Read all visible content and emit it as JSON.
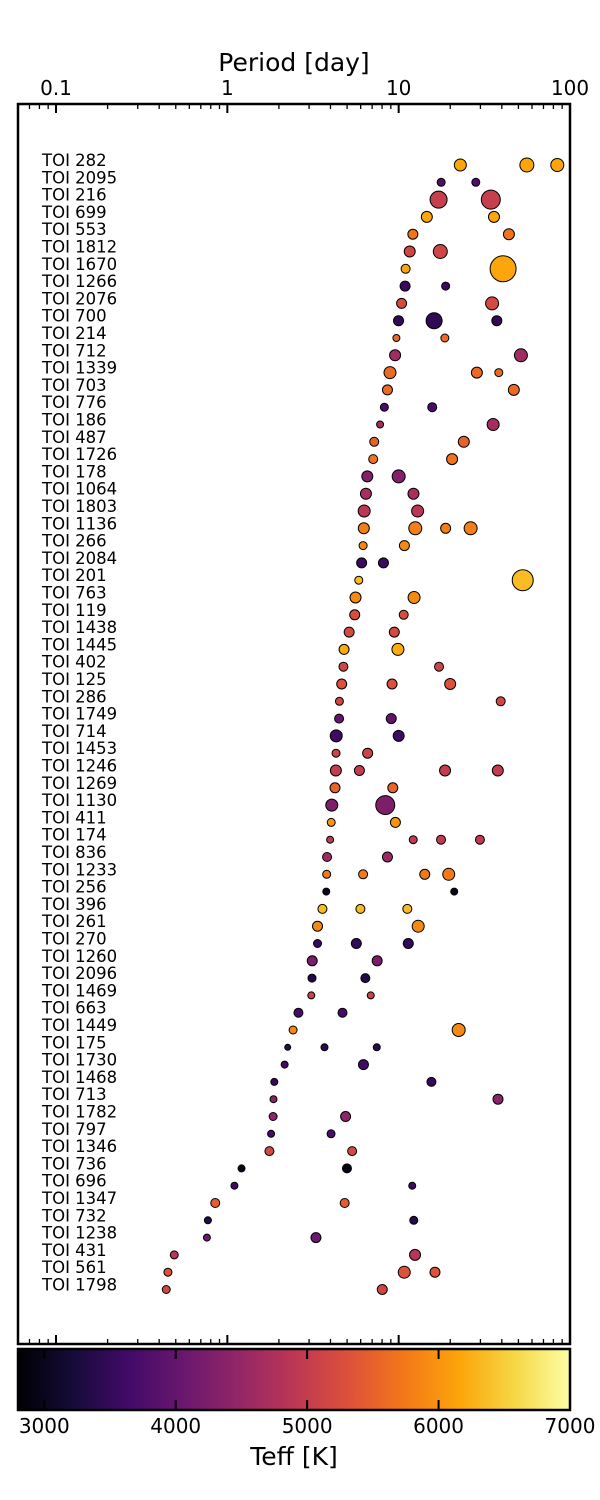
{
  "chart_data": {
    "type": "scatter",
    "xlabel": "Period [day]",
    "xscale": "log",
    "xlim": [
      0.06,
      100
    ],
    "xticks": [
      {
        "value": 0.1,
        "label": "0.1"
      },
      {
        "value": 1,
        "label": "1"
      },
      {
        "value": 10,
        "label": "10"
      },
      {
        "value": 100,
        "label": "100"
      }
    ],
    "grid": false,
    "color_encoding": "Teff",
    "size_encoding": "planet radius",
    "colorbar": {
      "label": "Teff [K]",
      "range": [
        2800,
        7000
      ],
      "colormap": "inferno",
      "ticks": [
        {
          "value": 3000,
          "label": "3000"
        },
        {
          "value": 4000,
          "label": "4000"
        },
        {
          "value": 5000,
          "label": "5000"
        },
        {
          "value": 6000,
          "label": "6000"
        },
        {
          "value": 7000,
          "label": "7000"
        }
      ]
    },
    "systems": [
      {
        "name": "TOI 282",
        "teff": 6150,
        "planets": [
          {
            "period": 22.9,
            "size": 6
          },
          {
            "period": 56.0,
            "size": 7
          },
          {
            "period": 84.3,
            "size": 6.5
          }
        ]
      },
      {
        "name": "TOI 2095",
        "teff": 3780,
        "planets": [
          {
            "period": 17.7,
            "size": 4
          },
          {
            "period": 28.2,
            "size": 4
          }
        ]
      },
      {
        "name": "TOI 216",
        "teff": 5030,
        "planets": [
          {
            "period": 17.1,
            "size": 8.5
          },
          {
            "period": 34.5,
            "size": 9.5
          }
        ]
      },
      {
        "name": "TOI 699",
        "teff": 6170,
        "planets": [
          {
            "period": 14.6,
            "size": 5.5
          },
          {
            "period": 36.0,
            "size": 5.5
          }
        ]
      },
      {
        "name": "TOI 553",
        "teff": 5700,
        "planets": [
          {
            "period": 12.1,
            "size": 5
          },
          {
            "period": 44.0,
            "size": 5.5
          }
        ]
      },
      {
        "name": "TOI 1812",
        "teff": 5140,
        "planets": [
          {
            "period": 11.6,
            "size": 5.5
          },
          {
            "period": 17.5,
            "size": 7
          }
        ]
      },
      {
        "name": "TOI 1670",
        "teff": 6170,
        "planets": [
          {
            "period": 10.98,
            "size": 4.5
          },
          {
            "period": 40.7,
            "size": 13
          }
        ]
      },
      {
        "name": "TOI 1266",
        "teff": 3570,
        "planets": [
          {
            "period": 10.9,
            "size": 5
          },
          {
            "period": 18.8,
            "size": 4
          }
        ]
      },
      {
        "name": "TOI 2076",
        "teff": 5200,
        "planets": [
          {
            "period": 10.4,
            "size": 5
          },
          {
            "period": 35.1,
            "size": 6.5
          }
        ]
      },
      {
        "name": "TOI 700",
        "teff": 3480,
        "planets": [
          {
            "period": 9.98,
            "size": 5
          },
          {
            "period": 16.1,
            "size": 8
          },
          {
            "period": 37.4,
            "size": 5
          }
        ]
      },
      {
        "name": "TOI 214",
        "teff": 5600,
        "planets": [
          {
            "period": 9.7,
            "size": 3.5
          },
          {
            "period": 18.6,
            "size": 4
          }
        ]
      },
      {
        "name": "TOI 712",
        "teff": 4620,
        "planets": [
          {
            "period": 9.53,
            "size": 5.5
          },
          {
            "period": 51.7,
            "size": 6.5
          }
        ]
      },
      {
        "name": "TOI 1339",
        "teff": 5600,
        "planets": [
          {
            "period": 8.9,
            "size": 6
          },
          {
            "period": 28.6,
            "size": 5.5
          },
          {
            "period": 38.4,
            "size": 4
          }
        ]
      },
      {
        "name": "TOI 703",
        "teff": 5600,
        "planets": [
          {
            "period": 8.6,
            "size": 5
          },
          {
            "period": 47.0,
            "size": 5.5
          }
        ]
      },
      {
        "name": "TOI 776",
        "teff": 3710,
        "planets": [
          {
            "period": 8.25,
            "size": 4
          },
          {
            "period": 15.7,
            "size": 4.5
          }
        ]
      },
      {
        "name": "TOI 186",
        "teff": 4650,
        "planets": [
          {
            "period": 7.79,
            "size": 3.5
          },
          {
            "period": 35.6,
            "size": 6
          }
        ]
      },
      {
        "name": "TOI 487",
        "teff": 5500,
        "planets": [
          {
            "period": 7.2,
            "size": 4.5
          },
          {
            "period": 24.0,
            "size": 5.5
          }
        ]
      },
      {
        "name": "TOI 1726",
        "teff": 5690,
        "planets": [
          {
            "period": 7.1,
            "size": 4.5
          },
          {
            "period": 20.5,
            "size": 5.5
          }
        ]
      },
      {
        "name": "TOI 178",
        "teff": 4320,
        "planets": [
          {
            "period": 6.56,
            "size": 5.5
          },
          {
            "period": 10.0,
            "size": 6.5
          }
        ]
      },
      {
        "name": "TOI 1064",
        "teff": 4710,
        "planets": [
          {
            "period": 6.44,
            "size": 5.5
          },
          {
            "period": 12.2,
            "size": 5.5
          }
        ]
      },
      {
        "name": "TOI 1803",
        "teff": 4900,
        "planets": [
          {
            "period": 6.29,
            "size": 6
          },
          {
            "period": 12.9,
            "size": 6
          }
        ]
      },
      {
        "name": "TOI 1136",
        "teff": 5800,
        "planets": [
          {
            "period": 6.26,
            "size": 5.5
          },
          {
            "period": 12.5,
            "size": 6.5
          },
          {
            "period": 18.8,
            "size": 5
          },
          {
            "period": 26.3,
            "size": 6.5
          }
        ]
      },
      {
        "name": "TOI 266",
        "teff": 5900,
        "planets": [
          {
            "period": 6.2,
            "size": 4
          },
          {
            "period": 10.8,
            "size": 5
          }
        ]
      },
      {
        "name": "TOI 2084",
        "teff": 3550,
        "planets": [
          {
            "period": 6.08,
            "size": 5
          },
          {
            "period": 8.15,
            "size": 5
          }
        ]
      },
      {
        "name": "TOI 201",
        "teff": 6350,
        "planets": [
          {
            "period": 5.85,
            "size": 4
          },
          {
            "period": 52.98,
            "size": 10.5
          }
        ]
      },
      {
        "name": "TOI 763",
        "teff": 5900,
        "planets": [
          {
            "period": 5.6,
            "size": 5.5
          },
          {
            "period": 12.3,
            "size": 6
          }
        ]
      },
      {
        "name": "TOI 119",
        "teff": 5250,
        "planets": [
          {
            "period": 5.54,
            "size": 5
          },
          {
            "period": 10.7,
            "size": 4.5
          }
        ]
      },
      {
        "name": "TOI 1438",
        "teff": 5200,
        "planets": [
          {
            "period": 5.14,
            "size": 5
          },
          {
            "period": 9.43,
            "size": 5
          }
        ]
      },
      {
        "name": "TOI 1445",
        "teff": 6200,
        "planets": [
          {
            "period": 4.8,
            "size": 5
          },
          {
            "period": 9.9,
            "size": 6
          }
        ]
      },
      {
        "name": "TOI 402",
        "teff": 5130,
        "planets": [
          {
            "period": 4.76,
            "size": 4.5
          },
          {
            "period": 17.2,
            "size": 4.5
          }
        ]
      },
      {
        "name": "TOI 125",
        "teff": 5320,
        "planets": [
          {
            "period": 4.65,
            "size": 5
          },
          {
            "period": 9.15,
            "size": 5
          },
          {
            "period": 19.98,
            "size": 5.5
          }
        ]
      },
      {
        "name": "TOI 286",
        "teff": 5150,
        "planets": [
          {
            "period": 4.51,
            "size": 4
          },
          {
            "period": 39.4,
            "size": 4.5
          }
        ]
      },
      {
        "name": "TOI 1749",
        "teff": 3990,
        "planets": [
          {
            "period": 4.49,
            "size": 4.5
          },
          {
            "period": 9.05,
            "size": 5
          }
        ]
      },
      {
        "name": "TOI 714",
        "teff": 3600,
        "planets": [
          {
            "period": 4.32,
            "size": 6
          },
          {
            "period": 10.0,
            "size": 5.5
          }
        ]
      },
      {
        "name": "TOI 1453",
        "teff": 5100,
        "planets": [
          {
            "period": 4.31,
            "size": 4
          },
          {
            "period": 6.59,
            "size": 5
          }
        ]
      },
      {
        "name": "TOI 1246",
        "teff": 4990,
        "planets": [
          {
            "period": 4.3,
            "size": 5.5
          },
          {
            "period": 5.9,
            "size": 5
          },
          {
            "period": 18.65,
            "size": 5.5
          },
          {
            "period": 37.9,
            "size": 5.5
          }
        ]
      },
      {
        "name": "TOI 1269",
        "teff": 5530,
        "planets": [
          {
            "period": 4.25,
            "size": 5
          },
          {
            "period": 9.24,
            "size": 5
          }
        ]
      },
      {
        "name": "TOI 1130",
        "teff": 4250,
        "planets": [
          {
            "period": 4.07,
            "size": 6
          },
          {
            "period": 8.35,
            "size": 9.5
          }
        ]
      },
      {
        "name": "TOI 411",
        "teff": 6000,
        "planets": [
          {
            "period": 4.04,
            "size": 4
          },
          {
            "period": 9.57,
            "size": 5
          }
        ]
      },
      {
        "name": "TOI 174",
        "teff": 4950,
        "planets": [
          {
            "period": 3.98,
            "size": 3.5
          },
          {
            "period": 12.16,
            "size": 4
          },
          {
            "period": 17.67,
            "size": 4.5
          },
          {
            "period": 29.8,
            "size": 4.5
          }
        ]
      },
      {
        "name": "TOI 836",
        "teff": 4550,
        "planets": [
          {
            "period": 3.82,
            "size": 4.5
          },
          {
            "period": 8.6,
            "size": 5
          }
        ]
      },
      {
        "name": "TOI 1233",
        "teff": 5750,
        "planets": [
          {
            "period": 3.8,
            "size": 4
          },
          {
            "period": 6.2,
            "size": 4.5
          },
          {
            "period": 14.2,
            "size": 5
          },
          {
            "period": 19.6,
            "size": 6
          }
        ]
      },
      {
        "name": "TOI 256",
        "teff": 3010,
        "planets": [
          {
            "period": 3.78,
            "size": 3.5
          },
          {
            "period": 21.1,
            "size": 3.5
          }
        ]
      },
      {
        "name": "TOI 396",
        "teff": 6340,
        "planets": [
          {
            "period": 3.59,
            "size": 4.5
          },
          {
            "period": 5.98,
            "size": 4.5
          },
          {
            "period": 11.23,
            "size": 4.5
          }
        ]
      },
      {
        "name": "TOI 261",
        "teff": 5890,
        "planets": [
          {
            "period": 3.36,
            "size": 5
          },
          {
            "period": 13.0,
            "size": 6
          }
        ]
      },
      {
        "name": "TOI 270",
        "teff": 3500,
        "planets": [
          {
            "period": 3.36,
            "size": 4
          },
          {
            "period": 5.66,
            "size": 5
          },
          {
            "period": 11.38,
            "size": 5
          }
        ]
      },
      {
        "name": "TOI 1260",
        "teff": 4230,
        "planets": [
          {
            "period": 3.13,
            "size": 5
          },
          {
            "period": 7.49,
            "size": 5
          }
        ]
      },
      {
        "name": "TOI 2096",
        "teff": 3300,
        "planets": [
          {
            "period": 3.12,
            "size": 4
          },
          {
            "period": 6.39,
            "size": 4.5
          }
        ]
      },
      {
        "name": "TOI 1469",
        "teff": 5100,
        "planets": [
          {
            "period": 3.09,
            "size": 3.5
          },
          {
            "period": 6.87,
            "size": 3.5
          }
        ]
      },
      {
        "name": "TOI 663",
        "teff": 3680,
        "planets": [
          {
            "period": 2.6,
            "size": 4.5
          },
          {
            "period": 4.7,
            "size": 4.5
          }
        ]
      },
      {
        "name": "TOI 1449",
        "teff": 5900,
        "planets": [
          {
            "period": 2.42,
            "size": 4
          },
          {
            "period": 22.4,
            "size": 6.5
          }
        ]
      },
      {
        "name": "TOI 175",
        "teff": 3400,
        "planets": [
          {
            "period": 2.25,
            "size": 3
          },
          {
            "period": 3.69,
            "size": 3.5
          },
          {
            "period": 7.45,
            "size": 3.5
          }
        ]
      },
      {
        "name": "TOI 1730",
        "teff": 3630,
        "planets": [
          {
            "period": 2.16,
            "size": 3.5
          },
          {
            "period": 6.23,
            "size": 5
          }
        ]
      },
      {
        "name": "TOI 1468",
        "teff": 3500,
        "planets": [
          {
            "period": 1.88,
            "size": 3.5
          },
          {
            "period": 15.53,
            "size": 4.5
          }
        ]
      },
      {
        "name": "TOI 713",
        "teff": 4400,
        "planets": [
          {
            "period": 1.86,
            "size": 3.5
          },
          {
            "period": 38.0,
            "size": 5
          }
        ]
      },
      {
        "name": "TOI 1782",
        "teff": 4450,
        "planets": [
          {
            "period": 1.85,
            "size": 4
          },
          {
            "period": 4.9,
            "size": 5
          }
        ]
      },
      {
        "name": "TOI 797",
        "teff": 3700,
        "planets": [
          {
            "period": 1.8,
            "size": 3.5
          },
          {
            "period": 4.03,
            "size": 4
          }
        ]
      },
      {
        "name": "TOI 1346",
        "teff": 5180,
        "planets": [
          {
            "period": 1.76,
            "size": 4.5
          },
          {
            "period": 5.35,
            "size": 4.5
          }
        ]
      },
      {
        "name": "TOI 736",
        "teff": 2900,
        "planets": [
          {
            "period": 1.21,
            "size": 3.5
          },
          {
            "period": 4.99,
            "size": 4.5
          }
        ]
      },
      {
        "name": "TOI 696",
        "teff": 3600,
        "planets": [
          {
            "period": 1.1,
            "size": 3.5
          },
          {
            "period": 12.0,
            "size": 3.5
          }
        ]
      },
      {
        "name": "TOI 1347",
        "teff": 5450,
        "planets": [
          {
            "period": 0.85,
            "size": 4.5
          },
          {
            "period": 4.84,
            "size": 4.5
          }
        ]
      },
      {
        "name": "TOI 732",
        "teff": 3360,
        "planets": [
          {
            "period": 0.77,
            "size": 3.5
          },
          {
            "period": 12.25,
            "size": 4
          }
        ]
      },
      {
        "name": "TOI 1238",
        "teff": 4090,
        "planets": [
          {
            "period": 0.76,
            "size": 3.5
          },
          {
            "period": 3.29,
            "size": 5
          }
        ]
      },
      {
        "name": "TOI 431",
        "teff": 4850,
        "planets": [
          {
            "period": 0.49,
            "size": 4
          },
          {
            "period": 12.46,
            "size": 5.5
          }
        ]
      },
      {
        "name": "TOI 561",
        "teff": 5330,
        "planets": [
          {
            "period": 0.45,
            "size": 4
          },
          {
            "period": 10.78,
            "size": 6
          },
          {
            "period": 16.29,
            "size": 5
          }
        ]
      },
      {
        "name": "TOI 1798",
        "teff": 5150,
        "planets": [
          {
            "period": 0.44,
            "size": 4
          },
          {
            "period": 8.02,
            "size": 5
          }
        ]
      }
    ]
  }
}
